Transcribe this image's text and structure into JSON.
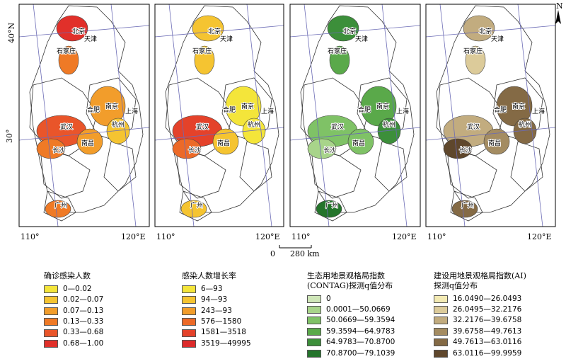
{
  "axes": {
    "lat_top": "40°N",
    "lat_mid": "30°",
    "lon_left": "110°",
    "lon_right": "120°E"
  },
  "scale_bar": {
    "zero": "0",
    "distance": "280 km"
  },
  "north_arrow": {
    "label": "N"
  },
  "cities": {
    "beijing": "北京",
    "tianjin": "天津",
    "shijiazhuang": "石家庄",
    "nanjing": "南京",
    "hefei": "合肥",
    "shanghai": "上海",
    "hangzhou": "杭州",
    "wuhan": "武汉",
    "changsha": "长沙",
    "nanchang": "南昌",
    "guangzhou": "广州"
  },
  "legends": [
    {
      "title_lines": [
        "确诊感染人数"
      ],
      "items": [
        {
          "label": "0—0.02",
          "color": "#f4e53a"
        },
        {
          "label": "0.02—0.07",
          "color": "#f5c431"
        },
        {
          "label": "0.07—0.13",
          "color": "#f29d2b"
        },
        {
          "label": "0.13—0.33",
          "color": "#ef7a26"
        },
        {
          "label": "0.33—0.68",
          "color": "#e9552a"
        },
        {
          "label": "0.68—1.00",
          "color": "#e1302a"
        }
      ]
    },
    {
      "title_lines": [
        "感染人数增长率"
      ],
      "items": [
        {
          "label": "6—93",
          "color": "#f4e53a"
        },
        {
          "label": "94—93",
          "color": "#f5c431"
        },
        {
          "label": "243—93",
          "color": "#f29d2b"
        },
        {
          "label": "576—1580",
          "color": "#ec6a28"
        },
        {
          "label": "1581—3518",
          "color": "#e4422a"
        },
        {
          "label": "3519—49995",
          "color": "#dc2a2a"
        }
      ]
    },
    {
      "title_lines": [
        "生态用地景观格局指数",
        "(CONTAG)探测q值分布"
      ],
      "items": [
        {
          "label": "0",
          "color": "#cfe6b8"
        },
        {
          "label": "0.0001—50.0669",
          "color": "#a8d48a"
        },
        {
          "label": "50.0669—59.3594",
          "color": "#7fc266"
        },
        {
          "label": "59.3594—64.9783",
          "color": "#5aa94a"
        },
        {
          "label": "64.9783—70.8700",
          "color": "#3c8f3a"
        },
        {
          "label": "70.8700—79.1039",
          "color": "#24742b"
        }
      ]
    },
    {
      "title_lines": [
        "建设用地景观格局指数(AI)",
        "探测q值分布"
      ],
      "items": [
        {
          "label": "16.0490—26.0493",
          "color": "#f3eab3"
        },
        {
          "label": "26.0495—32.2176",
          "color": "#dccb9a"
        },
        {
          "label": "32.2176—39.6758",
          "color": "#c2ac7f"
        },
        {
          "label": "39.6758—49.7613",
          "color": "#a48c62"
        },
        {
          "label": "49.7613—63.0116",
          "color": "#846a45"
        },
        {
          "label": "63.0116—99.9959",
          "color": "#5f472c"
        }
      ]
    }
  ]
}
